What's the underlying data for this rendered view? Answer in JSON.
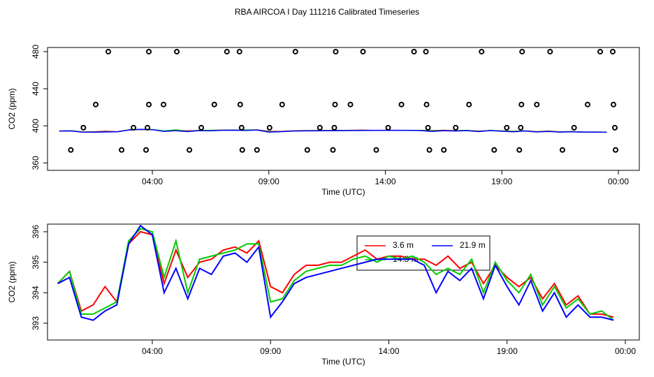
{
  "chart_data": [
    {
      "type": "scatter",
      "title": "RBA AIRCOA I  Day 111216  Calibrated Timeseries",
      "xlabel": "Time (UTC)",
      "ylabel": "CO2 (ppm)",
      "xlim": [
        -0.5,
        24.9
      ],
      "ylim": [
        352,
        484.5
      ],
      "xticks": [
        {
          "value": 4,
          "label": "04:00"
        },
        {
          "value": 9,
          "label": "09:00"
        },
        {
          "value": 14,
          "label": "14:00"
        },
        {
          "value": 19,
          "label": "19:00"
        },
        {
          "value": 24,
          "label": "00:00"
        }
      ],
      "yticks": [
        360,
        400,
        440,
        480
      ],
      "series": [
        {
          "color": "#000000",
          "x": [
            2.11,
            3.85,
            5.05,
            7.2,
            7.74,
            10.14,
            11.87,
            13.04,
            15.23,
            15.74,
            18.13,
            19.87,
            21.07,
            23.22,
            23.76,
            1.57,
            3.85,
            4.48,
            6.66,
            7.77,
            9.57,
            11.84,
            12.5,
            14.69,
            15.77,
            17.59,
            19.84,
            20.5,
            22.68,
            23.79,
            1.04,
            3.19,
            3.79,
            6.1,
            7.83,
            9.03,
            11.19,
            11.81,
            14.12,
            15.83,
            17.02,
            19.21,
            19.81,
            22.1,
            23.85,
            0.5,
            2.68,
            3.73,
            5.59,
            7.86,
            8.49,
            10.65,
            11.75,
            13.61,
            15.89,
            16.51,
            18.67,
            19.75,
            21.6,
            23.88
          ],
          "values": [
            480,
            480,
            480,
            480,
            480,
            480,
            480,
            480,
            480,
            480,
            480,
            480,
            480,
            480,
            480,
            423,
            423,
            423,
            423,
            423,
            423,
            423,
            423,
            423,
            423,
            423,
            423,
            423,
            423,
            423,
            398,
            398,
            398,
            398,
            398,
            398,
            398,
            398,
            398,
            398,
            398,
            398,
            398,
            398,
            398,
            374,
            374,
            374,
            374,
            374,
            374,
            374,
            374,
            374,
            374,
            374,
            374,
            374,
            374,
            374
          ]
        }
      ]
    },
    {
      "type": "line",
      "xlabel": "Time (UTC)",
      "ylabel": "CO2 (ppm)",
      "xlim": [
        -0.43,
        24.59
      ],
      "ylim": [
        392.45,
        396.25
      ],
      "xticks": [
        {
          "value": 4,
          "label": "04:00"
        },
        {
          "value": 9,
          "label": "09:00"
        },
        {
          "value": 14,
          "label": "14:00"
        },
        {
          "value": 19,
          "label": "19:00"
        },
        {
          "value": 24,
          "label": "00:00"
        }
      ],
      "yticks": [
        393,
        394,
        395,
        396
      ],
      "legend": "top",
      "x": [
        0,
        0.5,
        1,
        1.5,
        2,
        2.5,
        3,
        3.5,
        4,
        4.5,
        5,
        5.5,
        6,
        6.5,
        7,
        7.5,
        8,
        8.5,
        9,
        9.5,
        10,
        10.5,
        11,
        11.5,
        12,
        12.5,
        13,
        13.5,
        14,
        14.5,
        15,
        15.5,
        16,
        16.5,
        17,
        17.5,
        18,
        18.5,
        19,
        19.5,
        20,
        20.5,
        21,
        21.5,
        22,
        22.5,
        23,
        23.5
      ],
      "series": [
        {
          "name": "3.6 m",
          "color": "#ff0000",
          "values": [
            394.3,
            394.7,
            393.4,
            393.6,
            394.2,
            393.7,
            395.6,
            396.0,
            395.9,
            394.3,
            395.4,
            394.5,
            395.0,
            395.1,
            395.4,
            395.5,
            395.3,
            395.7,
            394.2,
            394.0,
            394.6,
            394.9,
            394.9,
            395.0,
            395.0,
            395.2,
            395.4,
            395.1,
            395.2,
            395.2,
            395.1,
            395.1,
            394.9,
            395.2,
            394.8,
            395.0,
            394.3,
            394.9,
            394.5,
            394.2,
            394.5,
            393.8,
            394.3,
            393.6,
            393.9,
            393.3,
            393.3,
            393.2
          ]
        },
        {
          "name": "14.3 m",
          "color": "#00cc00",
          "values": [
            394.3,
            394.7,
            393.3,
            393.3,
            393.5,
            393.7,
            395.7,
            396.1,
            396.0,
            394.5,
            395.7,
            394.0,
            395.1,
            395.2,
            395.3,
            395.4,
            395.6,
            395.6,
            393.7,
            393.8,
            394.4,
            394.7,
            394.8,
            394.9,
            394.9,
            395.1,
            395.2,
            395.0,
            395.2,
            395.1,
            395.2,
            395.0,
            394.6,
            394.8,
            394.6,
            395.1,
            394.0,
            395.0,
            394.4,
            394.0,
            394.6,
            393.6,
            394.2,
            393.5,
            393.8,
            393.3,
            393.4,
            393.1
          ]
        },
        {
          "name": "21.9 m",
          "color": "#0000ff",
          "values": [
            394.3,
            394.5,
            393.2,
            393.1,
            393.4,
            393.6,
            395.6,
            396.2,
            395.9,
            394.0,
            394.8,
            393.8,
            394.8,
            394.6,
            395.2,
            395.3,
            395.0,
            395.5,
            393.2,
            393.7,
            394.3,
            394.5,
            394.6,
            394.7,
            394.8,
            394.9,
            395.0,
            395.1,
            395.1,
            395.1,
            395.1,
            394.9,
            394.0,
            394.7,
            394.4,
            394.8,
            393.8,
            394.9,
            394.2,
            393.6,
            394.4,
            393.4,
            394.0,
            393.2,
            393.6,
            393.2,
            393.2,
            393.1
          ]
        }
      ]
    }
  ]
}
